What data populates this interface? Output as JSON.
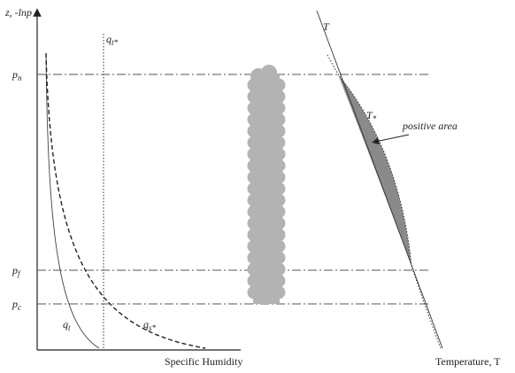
{
  "axes": {
    "y_label": {
      "base": "z, -ln",
      "var": "p"
    },
    "x_label_left": "Specific Humidity",
    "x_label_right": "Temperature, T"
  },
  "levels": [
    {
      "base": "p",
      "sub": "n"
    },
    {
      "base": "p",
      "sub": "f"
    },
    {
      "base": "p",
      "sub": "c"
    }
  ],
  "curves": {
    "qt_star": {
      "base": "q",
      "sub": "t*"
    },
    "qt": {
      "base": "q",
      "sub": "t"
    },
    "qs_star": {
      "base": "q",
      "sub": "s*"
    },
    "T": "T",
    "T_star": {
      "base": "T",
      "sub": "*"
    }
  },
  "annotation": "positive area"
}
